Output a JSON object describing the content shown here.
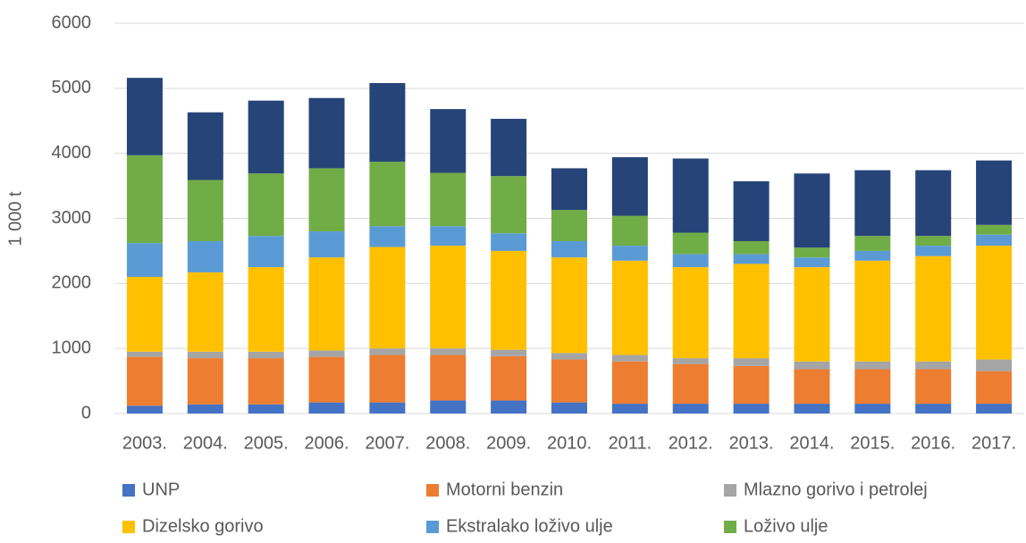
{
  "chart_data": {
    "type": "stacked_bar",
    "y_label": "1 000 t",
    "categories": [
      "2003.",
      "2004.",
      "2005.",
      "2006.",
      "2007.",
      "2008.",
      "2009.",
      "2010.",
      "2011.",
      "2012.",
      "2013.",
      "2014.",
      "2015.",
      "2016.",
      "2017."
    ],
    "series": [
      {
        "name": "UNP",
        "color": "#4472c4",
        "values": [
          120,
          140,
          140,
          170,
          170,
          200,
          200,
          170,
          150,
          150,
          150,
          150,
          150,
          150,
          150
        ]
      },
      {
        "name": "Motorni benzin",
        "color": "#ed7d31",
        "values": [
          750,
          710,
          710,
          700,
          730,
          700,
          680,
          660,
          650,
          610,
          580,
          530,
          530,
          530,
          500
        ]
      },
      {
        "name": "Mlazno gorivo i petrolej",
        "color": "#a5a5a5",
        "values": [
          80,
          100,
          100,
          100,
          100,
          100,
          100,
          100,
          100,
          90,
          120,
          120,
          120,
          120,
          180
        ]
      },
      {
        "name": "Dizelsko gorivo",
        "color": "#ffc000",
        "values": [
          1150,
          1220,
          1300,
          1430,
          1560,
          1580,
          1520,
          1470,
          1450,
          1400,
          1450,
          1450,
          1550,
          1620,
          1750
        ]
      },
      {
        "name": "Ekstralako loživo ulje",
        "color": "#5b9bd5",
        "values": [
          520,
          480,
          480,
          400,
          320,
          300,
          270,
          250,
          230,
          200,
          150,
          150,
          150,
          160,
          170
        ]
      },
      {
        "name": "Loživo ulje",
        "color": "#70ad47",
        "values": [
          1350,
          940,
          960,
          970,
          990,
          820,
          880,
          480,
          460,
          330,
          200,
          150,
          230,
          150,
          150
        ]
      },
      {
        "color": "#264478",
        "values": [
          1190,
          1040,
          1120,
          1080,
          1210,
          980,
          880,
          640,
          900,
          1140,
          920,
          1140,
          1010,
          1010,
          990
        ]
      }
    ],
    "ylim": [
      0,
      6000
    ],
    "yticks": [
      0,
      1000,
      2000,
      3000,
      4000,
      5000,
      6000
    ],
    "grid": true
  }
}
